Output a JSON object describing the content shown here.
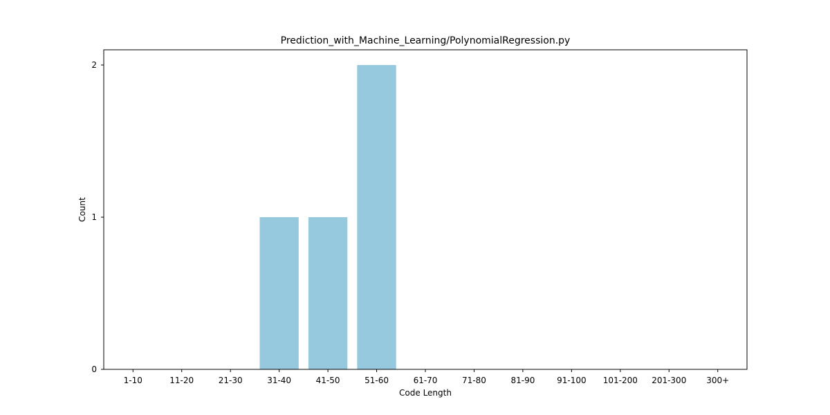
{
  "chart_data": {
    "type": "bar",
    "title": "Prediction_with_Machine_Learning/PolynomialRegression.py",
    "xlabel": "Code Length",
    "ylabel": "Count",
    "categories": [
      "1-10",
      "11-20",
      "21-30",
      "31-40",
      "41-50",
      "51-60",
      "61-70",
      "71-80",
      "81-90",
      "91-100",
      "101-200",
      "201-300",
      "300+"
    ],
    "values": [
      0,
      0,
      0,
      1,
      1,
      2,
      0,
      0,
      0,
      0,
      0,
      0,
      0
    ],
    "yticks": [
      "0",
      "1",
      "2"
    ],
    "ylim": [
      0,
      2.1
    ],
    "bar_color": "#96c9de",
    "grid": false
  }
}
